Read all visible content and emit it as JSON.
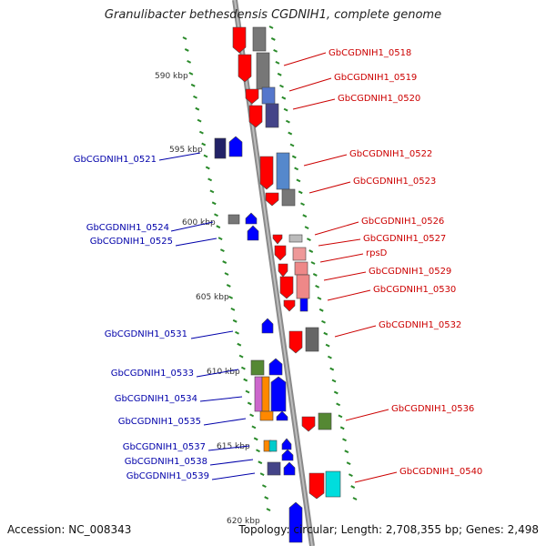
{
  "title": "Granulibacter bethesdensis CGDNIH1, complete genome",
  "footer": {
    "accession": "Accession: NC_008343",
    "topology": "Topology: circular; Length: 2,708,355 bp; Genes: 2,498"
  },
  "ticks": [
    {
      "label": "590 kbp",
      "kb": 590
    },
    {
      "label": "595 kbp",
      "kb": 595
    },
    {
      "label": "600 kbp",
      "kb": 600
    },
    {
      "label": "605 kbp",
      "kb": 605
    },
    {
      "label": "610 kbp",
      "kb": 610
    },
    {
      "label": "615 kbp",
      "kb": 615
    },
    {
      "label": "620 kbp",
      "kb": 620
    }
  ],
  "gene_labels": [
    {
      "text": "GbCGDNIH1_0518",
      "strand": "forward"
    },
    {
      "text": "GbCGDNIH1_0519",
      "strand": "forward"
    },
    {
      "text": "GbCGDNIH1_0520",
      "strand": "forward"
    },
    {
      "text": "GbCGDNIH1_0521",
      "strand": "reverse"
    },
    {
      "text": "GbCGDNIH1_0522",
      "strand": "forward"
    },
    {
      "text": "GbCGDNIH1_0523",
      "strand": "forward"
    },
    {
      "text": "GbCGDNIH1_0524",
      "strand": "reverse"
    },
    {
      "text": "GbCGDNIH1_0525",
      "strand": "reverse"
    },
    {
      "text": "GbCGDNIH1_0526",
      "strand": "forward"
    },
    {
      "text": "GbCGDNIH1_0527",
      "strand": "forward"
    },
    {
      "text": "rpsD",
      "strand": "forward"
    },
    {
      "text": "GbCGDNIH1_0529",
      "strand": "forward"
    },
    {
      "text": "GbCGDNIH1_0530",
      "strand": "forward"
    },
    {
      "text": "GbCGDNIH1_0531",
      "strand": "reverse"
    },
    {
      "text": "GbCGDNIH1_0532",
      "strand": "forward"
    },
    {
      "text": "GbCGDNIH1_0533",
      "strand": "reverse"
    },
    {
      "text": "GbCGDNIH1_0534",
      "strand": "reverse"
    },
    {
      "text": "GbCGDNIH1_0535",
      "strand": "reverse"
    },
    {
      "text": "GbCGDNIH1_0536",
      "strand": "forward"
    },
    {
      "text": "GbCGDNIH1_0537",
      "strand": "reverse"
    },
    {
      "text": "GbCGDNIH1_0538",
      "strand": "reverse"
    },
    {
      "text": "GbCGDNIH1_0539",
      "strand": "reverse"
    },
    {
      "text": "GbCGDNIH1_0540",
      "strand": "forward"
    }
  ],
  "colors": {
    "forward_label": "#cc0000",
    "reverse_label": "#0000aa",
    "forward_feature": "#ff0000",
    "reverse_feature": "#0000ff",
    "backbone": "#8a8a8a",
    "tick": "#2a8a2a",
    "tick_label": "#333333"
  }
}
